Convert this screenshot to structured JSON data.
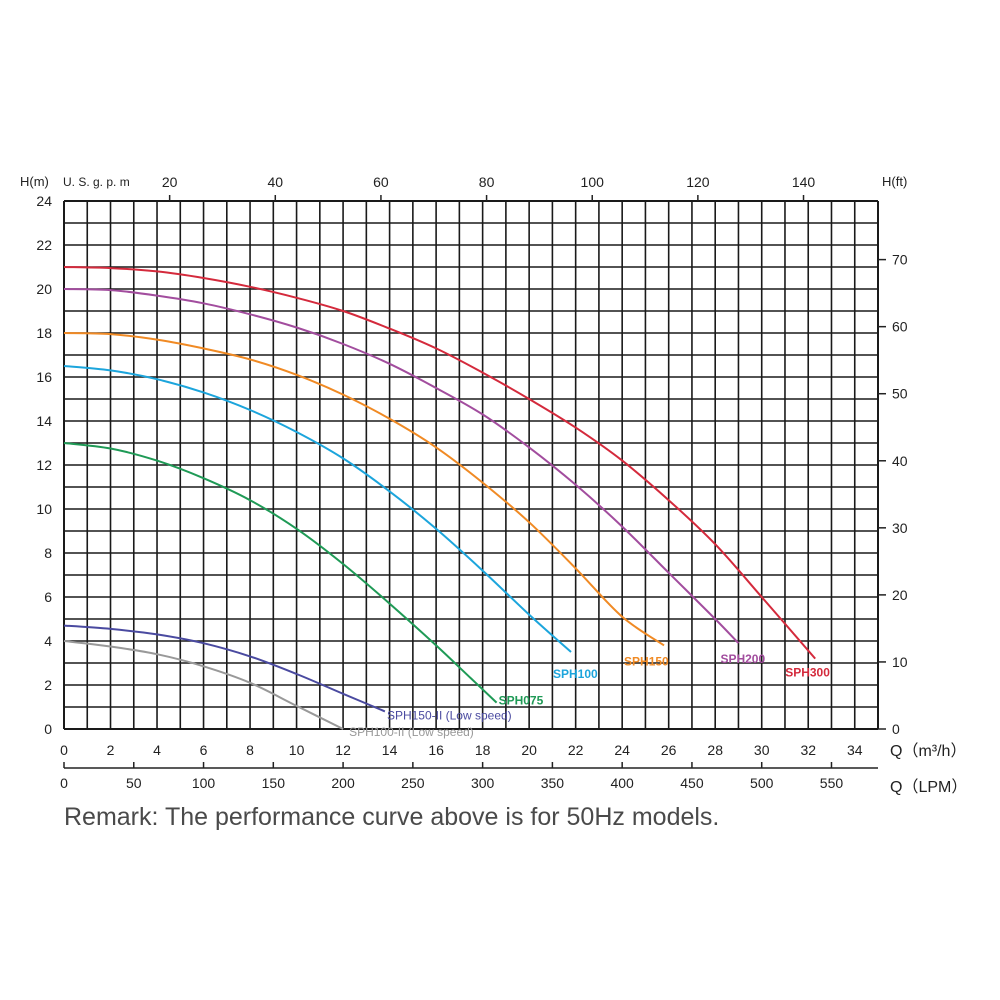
{
  "chart_data": {
    "type": "line",
    "yleft_label": "H(m)",
    "yright_label": "H(ft)",
    "top_axis_label": "U. S. g. p. m",
    "x1_label_prefix": "Q（",
    "x1_label_unit": "m³/h",
    "x1_label_suffix": "）",
    "x2_label": "Q（LPM）",
    "x_m3h_range": [
      0,
      35
    ],
    "y_m_range": [
      0,
      24
    ],
    "x_m3h_ticks": [
      "0",
      "2",
      "4",
      "6",
      "8",
      "10",
      "12",
      "14",
      "16",
      "18",
      "20",
      "22",
      "24",
      "26",
      "28",
      "30",
      "32",
      "34"
    ],
    "x_lpm_ticks": [
      "0",
      "50",
      "100",
      "150",
      "200",
      "250",
      "300",
      "350",
      "400",
      "450",
      "500",
      "550"
    ],
    "y_m_ticks": [
      "0",
      "2",
      "4",
      "6",
      "8",
      "10",
      "12",
      "14",
      "16",
      "18",
      "20",
      "22",
      "24"
    ],
    "y_ft_ticks": [
      "0",
      "10",
      "20",
      "30",
      "40",
      "50",
      "60",
      "70"
    ],
    "top_gpm_ticks": [
      "20",
      "40",
      "60",
      "80",
      "100",
      "120",
      "140"
    ],
    "grid": true,
    "series": [
      {
        "name": "SPH300",
        "color": "#d42a3c",
        "x": [
          0,
          2,
          4,
          6,
          8,
          10,
          12,
          14,
          16,
          18,
          20,
          22,
          24,
          26,
          28,
          30,
          32.3
        ],
        "y": [
          21,
          20.95,
          20.8,
          20.5,
          20.1,
          19.6,
          19.0,
          18.2,
          17.3,
          16.2,
          15.0,
          13.7,
          12.2,
          10.4,
          8.4,
          6.0,
          3.2
        ]
      },
      {
        "name": "SPH200",
        "color": "#a24d9e",
        "x": [
          0,
          2,
          4,
          6,
          8,
          10,
          12,
          14,
          16,
          18,
          20,
          22,
          24,
          26,
          28,
          29.0
        ],
        "y": [
          20,
          19.95,
          19.7,
          19.35,
          18.85,
          18.25,
          17.5,
          16.6,
          15.5,
          14.3,
          12.8,
          11.1,
          9.2,
          7.1,
          5.0,
          3.9
        ]
      },
      {
        "name": "SPH150",
        "color": "#f08a24",
        "x": [
          0,
          2,
          4,
          6,
          8,
          10,
          12,
          14,
          16,
          18,
          20,
          22,
          24,
          25.8
        ],
        "y": [
          18,
          17.95,
          17.7,
          17.3,
          16.8,
          16.1,
          15.2,
          14.1,
          12.8,
          11.2,
          9.4,
          7.3,
          5.1,
          3.8
        ]
      },
      {
        "name": "SPH100",
        "color": "#1ca5dc",
        "x": [
          0,
          2,
          4,
          6,
          8,
          10,
          12,
          14,
          16,
          18,
          20,
          21.8
        ],
        "y": [
          16.5,
          16.3,
          15.9,
          15.3,
          14.5,
          13.5,
          12.3,
          10.8,
          9.1,
          7.2,
          5.2,
          3.5
        ]
      },
      {
        "name": "SPH075",
        "color": "#1f9a56",
        "x": [
          0,
          2,
          4,
          6,
          8,
          10,
          12,
          14,
          16,
          17.5,
          18.6
        ],
        "y": [
          13,
          12.75,
          12.2,
          11.4,
          10.4,
          9.1,
          7.5,
          5.7,
          3.8,
          2.3,
          1.2
        ]
      },
      {
        "name": "SPH150-II (Low speed)",
        "color": "#4a4aa0",
        "x": [
          0,
          2,
          4,
          6,
          8,
          10,
          12,
          13.8
        ],
        "y": [
          4.7,
          4.55,
          4.3,
          3.9,
          3.3,
          2.5,
          1.6,
          0.8
        ]
      },
      {
        "name": "SPH100-II (Low speed)",
        "color": "#999999",
        "x": [
          0,
          2,
          4,
          6,
          8,
          10,
          12.0
        ],
        "y": [
          4.0,
          3.75,
          3.4,
          2.85,
          2.1,
          1.05,
          0
        ]
      }
    ]
  },
  "remark": "Remark: The performance curve above is for 50Hz models."
}
